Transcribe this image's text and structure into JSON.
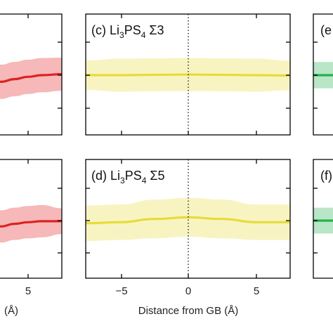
{
  "chart_data": [
    {
      "type": "area",
      "panel": "left-top",
      "title": "",
      "color_line": "#dd2222",
      "color_band": "#f6b8b8",
      "x": [
        -1,
        0,
        1,
        2,
        3,
        4,
        5,
        6,
        7.5
      ],
      "series": [
        {
          "values": [
            -0.6,
            -0.5,
            -0.4,
            -0.3,
            -0.2,
            -0.12,
            -0.05,
            0.0,
            0.03
          ]
        }
      ],
      "band_halfwidth": [
        0.45,
        0.48,
        0.5,
        0.52,
        0.52,
        0.52,
        0.52,
        0.52,
        0.5
      ]
    },
    {
      "type": "area",
      "panel": "c",
      "title": "(c) Li3PS4 Σ3",
      "title_parts": {
        "label": "(c) Li",
        "sub1": "3",
        "mid": "PS",
        "sub2": "4",
        "sigma": " Σ3"
      },
      "color_line": "#e6dc3a",
      "color_band": "#f8f4c2",
      "xlabel": "",
      "xlim": [
        -7.8,
        7.5
      ],
      "x": [
        -7.5,
        -5,
        -2.5,
        0,
        2.5,
        5,
        7.5
      ],
      "series": [
        {
          "values": [
            0.0,
            0.0,
            0.01,
            0.02,
            0.01,
            0.0,
            -0.01
          ]
        }
      ],
      "band_halfwidth": [
        0.45,
        0.5,
        0.5,
        0.5,
        0.5,
        0.5,
        0.45
      ]
    },
    {
      "type": "area",
      "panel": "e",
      "title": "(e",
      "color_line": "#22b24c",
      "color_band": "#b8e6c6",
      "x": [
        -8,
        -7.5
      ],
      "series": [
        {
          "values": [
            0.0,
            0.0
          ]
        }
      ],
      "band_halfwidth": [
        0.4,
        0.4
      ]
    },
    {
      "type": "area",
      "panel": "left-bottom",
      "title": "",
      "color_line": "#dd2222",
      "color_band": "#f6b8b8",
      "x": [
        -1,
        0,
        1,
        2,
        3,
        4,
        5,
        6,
        7.5
      ],
      "series": [
        {
          "values": [
            -0.15,
            -0.12,
            -0.05,
            -0.12,
            -0.18,
            -0.1,
            -0.05,
            -0.02,
            -0.02
          ]
        }
      ],
      "band_halfwidth": [
        0.5,
        0.5,
        0.5,
        0.5,
        0.5,
        0.5,
        0.5,
        0.5,
        0.4
      ]
    },
    {
      "type": "area",
      "panel": "d",
      "title": "(d) Li3PS4 Σ5",
      "title_parts": {
        "label": "(d) Li",
        "sub1": "3",
        "mid": "PS",
        "sub2": "4",
        "sigma": " Σ5"
      },
      "color_line": "#e6dc3a",
      "color_band": "#f8f4c2",
      "xlim": [
        -7.8,
        7.5
      ],
      "x": [
        -7.5,
        -5,
        -2.5,
        0,
        2.5,
        5,
        7.5
      ],
      "series": [
        {
          "values": [
            -0.08,
            -0.05,
            0.05,
            0.1,
            0.05,
            -0.05,
            -0.05
          ]
        }
      ],
      "band_halfwidth": [
        0.55,
        0.55,
        0.6,
        0.6,
        0.6,
        0.55,
        0.55
      ]
    },
    {
      "type": "area",
      "panel": "f",
      "title": "(f)",
      "color_line": "#22b24c",
      "color_band": "#b8e6c6",
      "x": [
        -8,
        -7.5
      ],
      "series": [
        {
          "values": [
            0.0,
            0.0
          ]
        }
      ],
      "band_halfwidth": [
        0.4,
        0.4
      ]
    }
  ],
  "xaxis": {
    "center_ticks": [
      "−5",
      "0",
      "5"
    ],
    "left_ticks": [
      "5"
    ],
    "center_label": "Distance from GB (Å)",
    "left_label_fragment": "(Å)"
  }
}
